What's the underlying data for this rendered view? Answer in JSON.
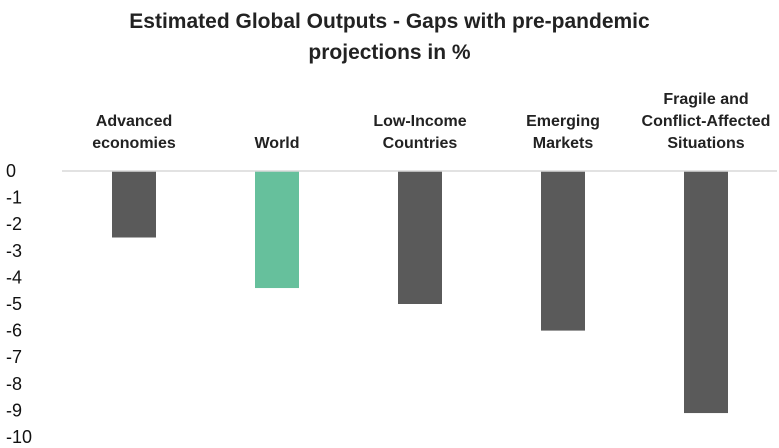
{
  "chart_data": {
    "type": "bar",
    "title_lines": [
      "Estimated Global Outputs - Gaps with pre-pandemic",
      "projections in %"
    ],
    "categories": [
      "Advanced economies",
      "World",
      "Low-Income Countries",
      "Emerging Markets",
      "Fragile and Conflict-Affected Situations"
    ],
    "category_label_lines": [
      [
        "Advanced",
        "economies"
      ],
      [
        "World"
      ],
      [
        "Low-Income",
        "Countries"
      ],
      [
        "Emerging",
        "Markets"
      ],
      [
        "Fragile and",
        "Conflict-Affected",
        "Situations"
      ]
    ],
    "values": [
      -2.5,
      -4.4,
      -5.0,
      -6.0,
      -9.1
    ],
    "ylim": [
      -10,
      0
    ],
    "yticks": [
      "0",
      "-1",
      "-2",
      "-3",
      "-4",
      "-5",
      "-6",
      "-7",
      "-8",
      "-9",
      "-10"
    ],
    "colors": {
      "default_bar": "#5a5a5a",
      "highlight_bar": "#66c09c",
      "axis_line": "#d9d9d9"
    },
    "highlight_category": "World",
    "grid": false,
    "legend": "none"
  }
}
